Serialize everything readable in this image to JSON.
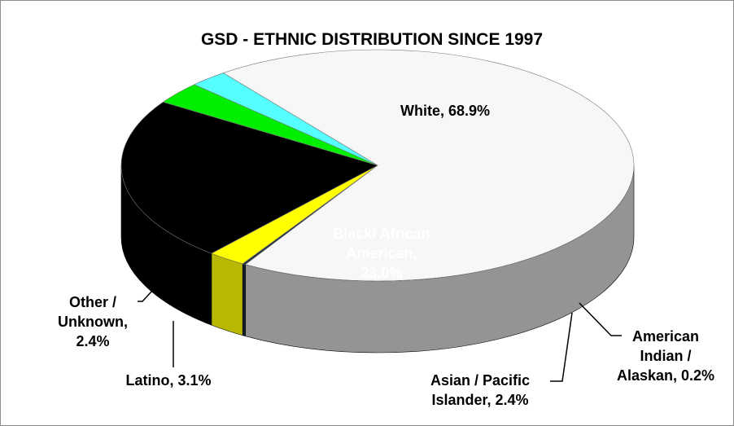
{
  "chart_data": {
    "type": "pie",
    "style": "3d",
    "title": "GSD - ETHNIC DISTRIBUTION SINCE 1997",
    "slices": [
      {
        "name": "White",
        "value": 68.9,
        "label": "White, 68.9%",
        "color": "#f7f7f7"
      },
      {
        "name": "American Indian / Alaskan",
        "value": 0.2,
        "label": "American Indian / Alaskan, 0.2%",
        "color": "#1f2d3d"
      },
      {
        "name": "Asian / Pacific Islander",
        "value": 2.4,
        "label": "Asian / Pacific Islander, 2.4%",
        "color": "#ffff00"
      },
      {
        "name": "Black/ African American",
        "value": 23.0,
        "label": "Black/ African American, 23.0%",
        "color": "#000000"
      },
      {
        "name": "Latino",
        "value": 3.1,
        "label": "Latino, 3.1%",
        "color": "#00ee00"
      },
      {
        "name": "Other / Unknown",
        "value": 2.4,
        "label": "Other / Unknown, 2.4%",
        "color": "#55ffff"
      }
    ],
    "labels": {
      "white": [
        "White, 68.9%"
      ],
      "black": [
        "Black/  African",
        "American,",
        "23.0%"
      ],
      "other": [
        "Other /",
        "Unknown,",
        "2.4%"
      ],
      "latino": [
        "Latino, 3.1%"
      ],
      "asian": [
        "Asian / Pacific",
        "Islander, 2.4%"
      ],
      "american_indian": [
        "American",
        "Indian /",
        "Alaskan, 0.2%"
      ]
    }
  }
}
